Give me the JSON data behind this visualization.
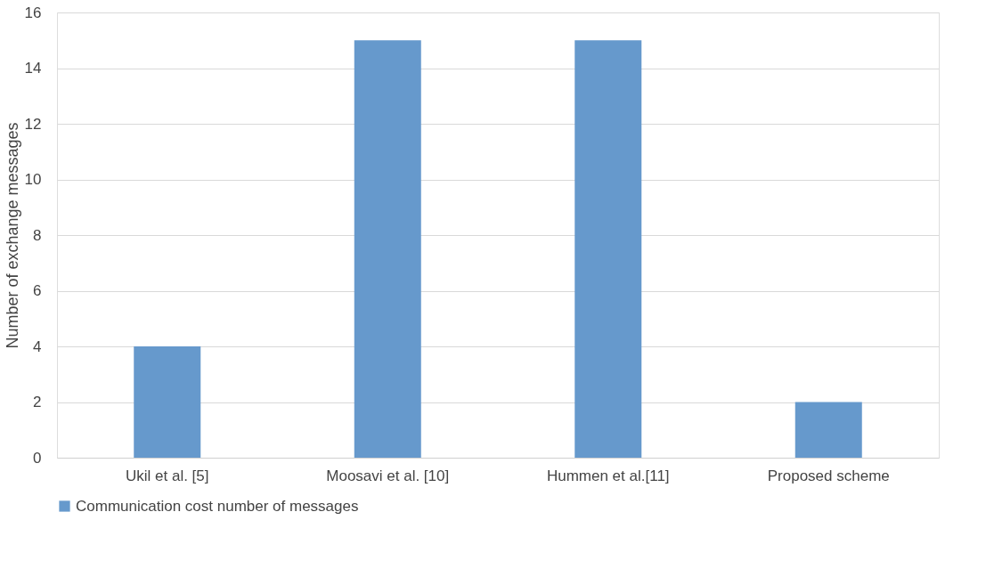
{
  "chart_data": {
    "type": "bar",
    "ylabel": "Number of exchange messages",
    "categories": [
      "Ukil et al. [5]",
      "Moosavi et al. [10]",
      "Hummen et al.[11]",
      "Proposed scheme"
    ],
    "series": [
      {
        "name": "Communication cost number of messages",
        "color": "#6699cc",
        "values": [
          4,
          15,
          15,
          2
        ]
      }
    ],
    "ylim": [
      0,
      16
    ],
    "yticks": [
      0,
      2,
      4,
      6,
      8,
      10,
      12,
      14,
      16
    ],
    "grid": "y",
    "legend": "bottom"
  }
}
